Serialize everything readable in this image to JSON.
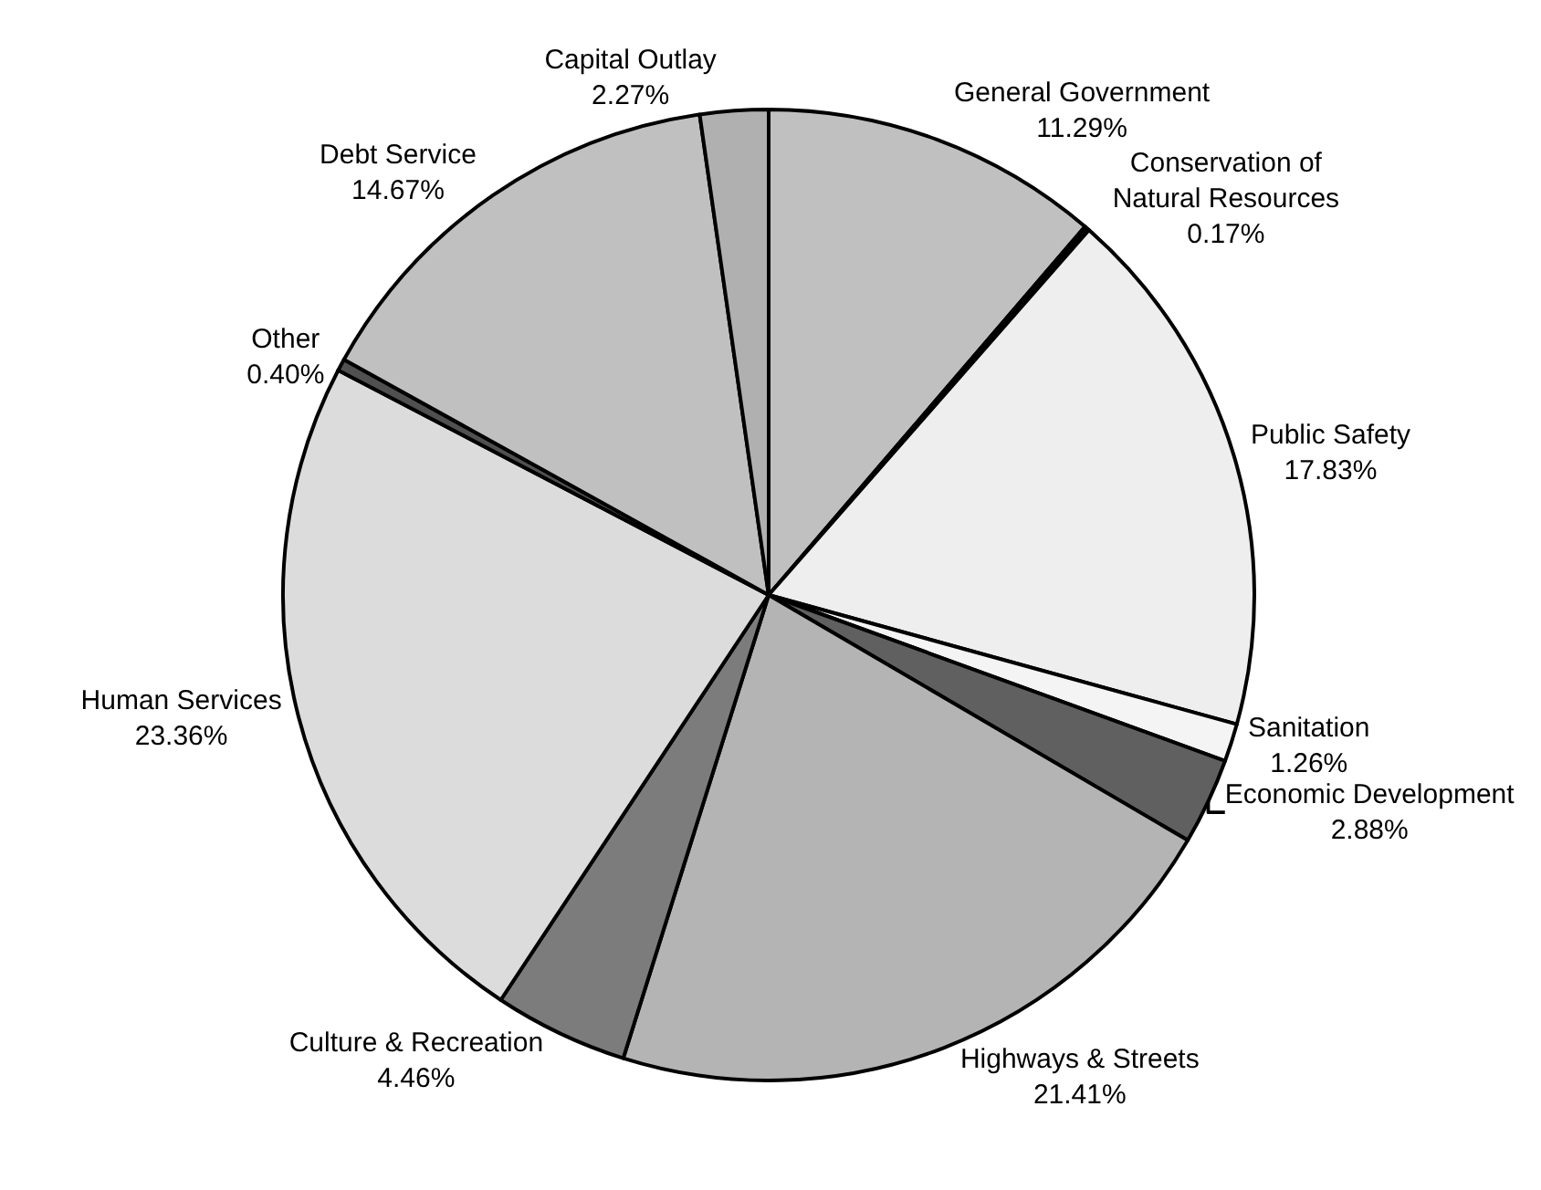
{
  "chart_data": {
    "type": "pie",
    "categories": [
      "General Government",
      "Conservation of Natural Resources",
      "Public Safety",
      "Sanitation",
      "Economic Development",
      "Highways & Streets",
      "Culture & Recreation",
      "Human Services",
      "Other",
      "Debt Service",
      "Capital Outlay"
    ],
    "values": [
      11.29,
      0.17,
      17.83,
      1.26,
      2.88,
      21.41,
      4.46,
      23.36,
      0.4,
      14.67,
      2.27
    ],
    "value_labels": [
      "11.29%",
      "0.17%",
      "17.83%",
      "1.26%",
      "2.88%",
      "21.41%",
      "4.46%",
      "23.36%",
      "0.40%",
      "14.67%",
      "2.27%"
    ],
    "colors": [
      "#c0c0c0",
      "#000000",
      "#eeeeee",
      "#f4f4f4",
      "#606060",
      "#b4b4b4",
      "#7c7c7c",
      "#dcdcdc",
      "#505050",
      "#c0c0c0",
      "#b0b0b0"
    ],
    "legend": false
  }
}
